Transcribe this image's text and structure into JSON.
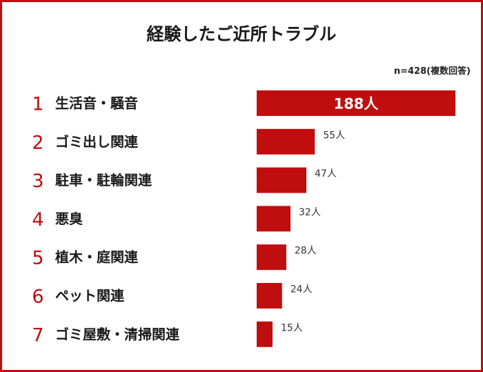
{
  "chart_data": {
    "type": "bar",
    "orientation": "horizontal",
    "title": "経験したご近所トラブル",
    "note": "n=428(複数回答)",
    "ranks": [
      "1",
      "2",
      "3",
      "4",
      "5",
      "6",
      "7"
    ],
    "categories": [
      "生活音・騒音",
      "ゴミ出し関連",
      "駐車・駐輪関連",
      "悪臭",
      "植木・庭関連",
      "ペット関連",
      "ゴミ屋敷・清掃関連"
    ],
    "values": [
      188,
      55,
      47,
      32,
      28,
      24,
      15
    ],
    "value_labels": [
      "188人",
      "55人",
      "47人",
      "32人",
      "28人",
      "24人",
      "15人"
    ],
    "bar_color": "#c00d0d",
    "accent_color": "#c00d0d"
  }
}
